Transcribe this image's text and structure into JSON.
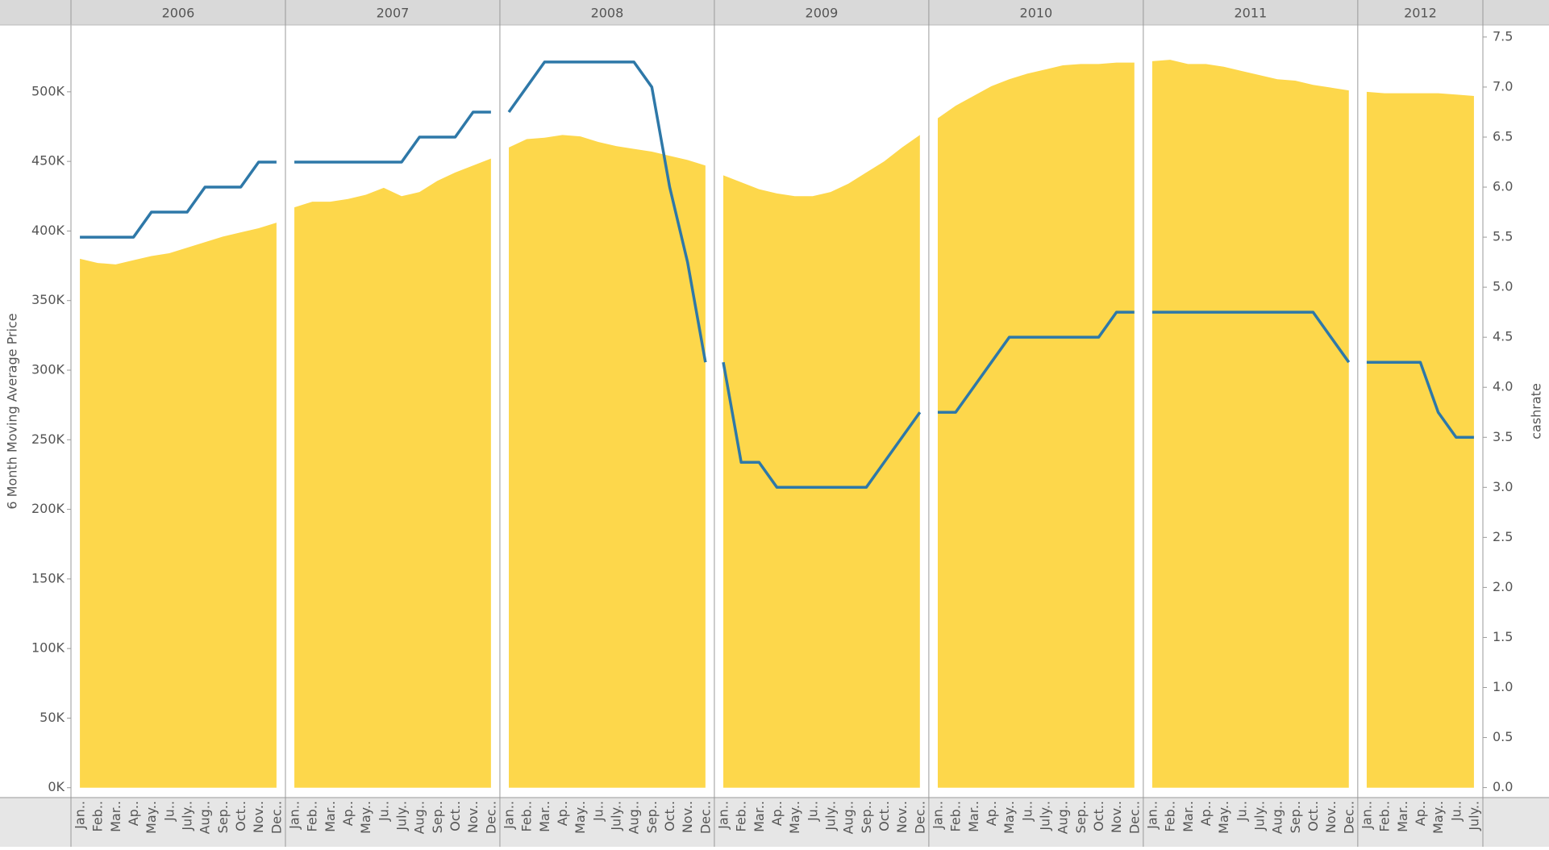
{
  "chart_data": {
    "type": "combo",
    "ylabel": "6 Month Moving Average Price",
    "y2label": "cashrate",
    "ylim": [
      -7100,
      548000
    ],
    "yticks": [
      {
        "value": 0,
        "label": "0K"
      },
      {
        "value": 50000,
        "label": "50K"
      },
      {
        "value": 100000,
        "label": "100K"
      },
      {
        "value": 150000,
        "label": "150K"
      },
      {
        "value": 200000,
        "label": "200K"
      },
      {
        "value": 250000,
        "label": "250K"
      },
      {
        "value": 300000,
        "label": "300K"
      },
      {
        "value": 350000,
        "label": "350K"
      },
      {
        "value": 400000,
        "label": "400K"
      },
      {
        "value": 450000,
        "label": "450K"
      },
      {
        "value": 500000,
        "label": "500K"
      }
    ],
    "y2lim": [
      -0.1,
      7.62
    ],
    "y2ticks": [
      {
        "value": 0,
        "label": "0.0"
      },
      {
        "value": 0.5,
        "label": "0.5"
      },
      {
        "value": 1,
        "label": "1.0"
      },
      {
        "value": 1.5,
        "label": "1.5"
      },
      {
        "value": 2,
        "label": "2.0"
      },
      {
        "value": 2.5,
        "label": "2.5"
      },
      {
        "value": 3,
        "label": "3.0"
      },
      {
        "value": 3.5,
        "label": "3.5"
      },
      {
        "value": 4,
        "label": "4.0"
      },
      {
        "value": 4.5,
        "label": "4.5"
      },
      {
        "value": 5,
        "label": "5.0"
      },
      {
        "value": 5.5,
        "label": "5.5"
      },
      {
        "value": 6,
        "label": "6.0"
      },
      {
        "value": 6.5,
        "label": "6.5"
      },
      {
        "value": 7,
        "label": "7.0"
      },
      {
        "value": 7.5,
        "label": "7.5"
      }
    ],
    "panels": [
      {
        "title": "2006",
        "categories": [
          "Jan..",
          "Feb..",
          "Mar..",
          "Ap..",
          "May..",
          "Ju..",
          "July..",
          "Aug..",
          "Sep..",
          "Oct..",
          "Nov..",
          "Dec.."
        ],
        "series": [
          {
            "type": "area",
            "color": "#fdd74b",
            "values": [
              380000,
              377000,
              376000,
              379000,
              382000,
              384000,
              388000,
              392000,
              396000,
              399000,
              402000,
              406000
            ]
          },
          {
            "type": "line",
            "axis": "y2",
            "color": "#2e78a8",
            "values": [
              5.5,
              5.5,
              5.5,
              5.5,
              5.75,
              5.75,
              5.75,
              6.0,
              6.0,
              6.0,
              6.25,
              6.25
            ]
          }
        ]
      },
      {
        "title": "2007",
        "categories": [
          "Jan..",
          "Feb..",
          "Mar..",
          "Ap..",
          "May..",
          "Ju..",
          "July..",
          "Aug..",
          "Sep..",
          "Oct..",
          "Nov..",
          "Dec.."
        ],
        "series": [
          {
            "type": "area",
            "color": "#fdd74b",
            "values": [
              417000,
              421000,
              421000,
              423000,
              426000,
              431000,
              425000,
              428000,
              436000,
              442000,
              447000,
              452000
            ]
          },
          {
            "type": "line",
            "axis": "y2",
            "color": "#2e78a8",
            "values": [
              6.25,
              6.25,
              6.25,
              6.25,
              6.25,
              6.25,
              6.25,
              6.5,
              6.5,
              6.5,
              6.75,
              6.75
            ]
          }
        ]
      },
      {
        "title": "2008",
        "categories": [
          "Jan..",
          "Feb..",
          "Mar..",
          "Ap..",
          "May..",
          "Ju..",
          "July..",
          "Aug..",
          "Sep..",
          "Oct..",
          "Nov..",
          "Dec.."
        ],
        "series": [
          {
            "type": "area",
            "color": "#fdd74b",
            "values": [
              460000,
              466000,
              467000,
              469000,
              468000,
              464000,
              461000,
              459000,
              457000,
              454000,
              451000,
              447000
            ]
          },
          {
            "type": "line",
            "axis": "y2",
            "color": "#2e78a8",
            "values": [
              6.75,
              7.0,
              7.25,
              7.25,
              7.25,
              7.25,
              7.25,
              7.25,
              7.0,
              6.0,
              5.25,
              4.25
            ]
          }
        ]
      },
      {
        "title": "2009",
        "categories": [
          "Jan..",
          "Feb..",
          "Mar..",
          "Ap..",
          "May..",
          "Ju..",
          "July..",
          "Aug..",
          "Sep..",
          "Oct..",
          "Nov..",
          "Dec.."
        ],
        "series": [
          {
            "type": "area",
            "color": "#fdd74b",
            "values": [
              440000,
              435000,
              430000,
              427000,
              425000,
              425000,
              428000,
              434000,
              442000,
              450000,
              460000,
              469000
            ]
          },
          {
            "type": "line",
            "axis": "y2",
            "color": "#2e78a8",
            "values": [
              4.25,
              3.25,
              3.25,
              3.0,
              3.0,
              3.0,
              3.0,
              3.0,
              3.0,
              3.25,
              3.5,
              3.75
            ]
          }
        ]
      },
      {
        "title": "2010",
        "categories": [
          "Jan..",
          "Feb..",
          "Mar..",
          "Ap..",
          "May..",
          "Ju..",
          "July..",
          "Aug..",
          "Sep..",
          "Oct..",
          "Nov..",
          "Dec.."
        ],
        "series": [
          {
            "type": "area",
            "color": "#fdd74b",
            "values": [
              481000,
              490000,
              497000,
              504000,
              509000,
              513000,
              516000,
              519000,
              520000,
              520000,
              521000,
              521000
            ]
          },
          {
            "type": "line",
            "axis": "y2",
            "color": "#2e78a8",
            "values": [
              3.75,
              3.75,
              4.0,
              4.25,
              4.5,
              4.5,
              4.5,
              4.5,
              4.5,
              4.5,
              4.75,
              4.75
            ]
          }
        ]
      },
      {
        "title": "2011",
        "categories": [
          "Jan..",
          "Feb..",
          "Mar..",
          "Ap..",
          "May..",
          "Ju..",
          "July..",
          "Aug..",
          "Sep..",
          "Oct..",
          "Nov..",
          "Dec.."
        ],
        "series": [
          {
            "type": "area",
            "color": "#fdd74b",
            "values": [
              522000,
              523000,
              520000,
              520000,
              518000,
              515000,
              512000,
              509000,
              508000,
              505000,
              503000,
              501000
            ]
          },
          {
            "type": "line",
            "axis": "y2",
            "color": "#2e78a8",
            "values": [
              4.75,
              4.75,
              4.75,
              4.75,
              4.75,
              4.75,
              4.75,
              4.75,
              4.75,
              4.75,
              4.5,
              4.25
            ]
          }
        ]
      },
      {
        "title": "2012",
        "categories": [
          "Jan..",
          "Feb..",
          "Mar..",
          "Ap..",
          "May..",
          "Ju..",
          "July.."
        ],
        "series": [
          {
            "type": "area",
            "color": "#fdd74b",
            "values": [
              500000,
              499000,
              499000,
              499000,
              499000,
              498000,
              497000
            ]
          },
          {
            "type": "line",
            "axis": "y2",
            "color": "#2e78a8",
            "values": [
              4.25,
              4.25,
              4.25,
              4.25,
              3.75,
              3.5,
              3.5
            ]
          }
        ]
      }
    ]
  }
}
